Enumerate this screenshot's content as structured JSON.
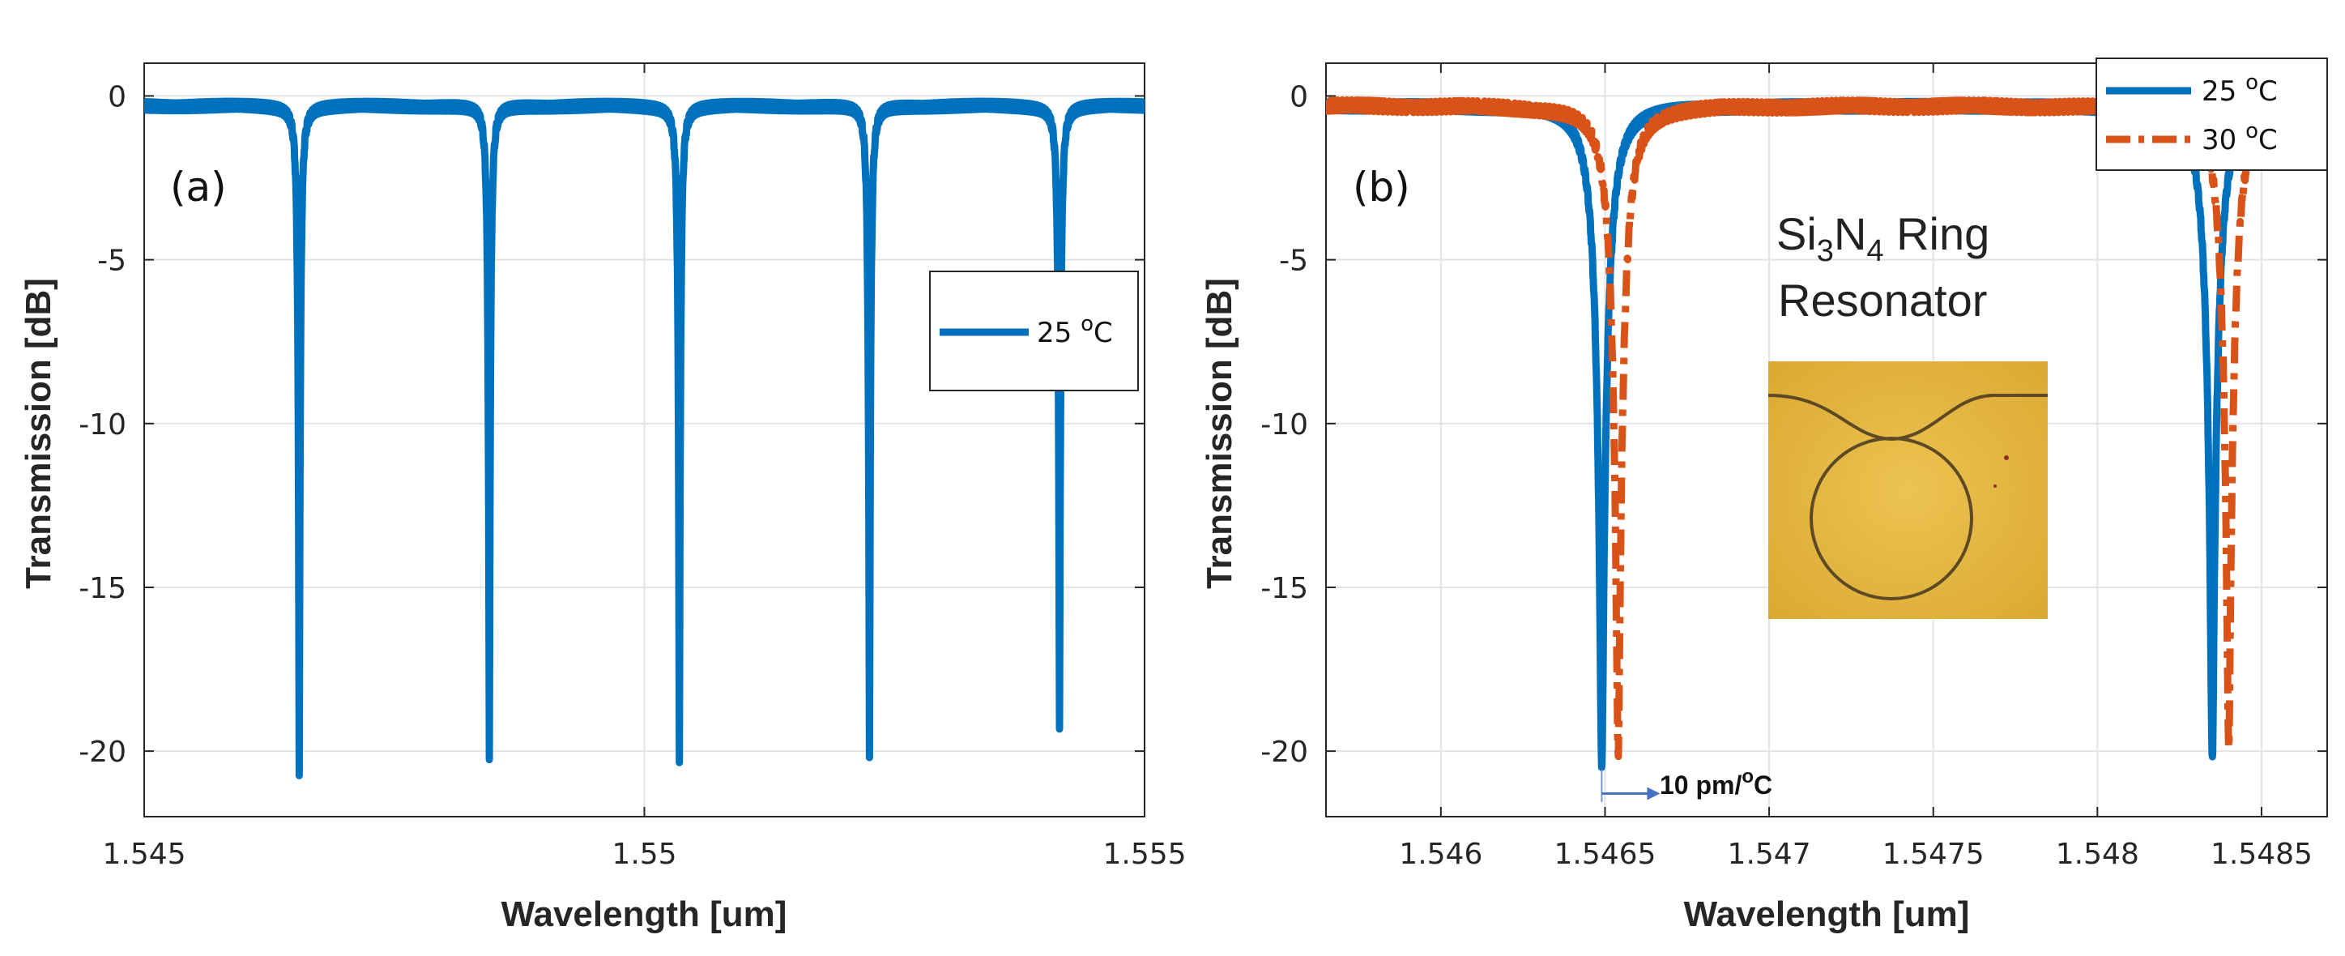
{
  "chart_data": [
    {
      "id": "a",
      "type": "line",
      "panel_label": "(a)",
      "xlabel": "Wavelength [um]",
      "ylabel": "Transmission [dB]",
      "xlim": [
        1.545,
        1.555
      ],
      "ylim": [
        -22,
        1
      ],
      "xticks": [
        1.545,
        1.55,
        1.555
      ],
      "xtick_labels": [
        "1.545",
        "1.55",
        "1.555"
      ],
      "yticks": [
        0,
        -5,
        -10,
        -15,
        -20
      ],
      "ytick_labels": [
        "0",
        "-5",
        "-10",
        "-15",
        "-20"
      ],
      "grid": true,
      "legend_position": "right-middle",
      "series": [
        {
          "name": "25 ºC",
          "legend_label": "25 ",
          "legend_unit": "C",
          "style": "solid",
          "color": "#0072BD",
          "baseline_db": -0.3,
          "fwhm_um": 6e-05,
          "resonances": [
            {
              "center": 1.54655,
              "depth": -20.3
            },
            {
              "center": 1.54845,
              "depth": -20.0
            },
            {
              "center": 1.55035,
              "depth": -19.9
            },
            {
              "center": 1.55225,
              "depth": -19.8
            },
            {
              "center": 1.55415,
              "depth": -19.1
            }
          ]
        }
      ]
    },
    {
      "id": "b",
      "type": "line",
      "panel_label": "(b)",
      "xlabel": "Wavelength [um]",
      "ylabel": "Transmission [dB]",
      "xlim": [
        1.54565,
        1.5487
      ],
      "ylim": [
        -22,
        1
      ],
      "xticks": [
        1.546,
        1.5465,
        1.547,
        1.5475,
        1.548,
        1.5485
      ],
      "xtick_labels": [
        "1.546",
        "1.5465",
        "1.547",
        "1.5475",
        "1.548",
        "1.5485"
      ],
      "yticks": [
        0,
        -5,
        -10,
        -15,
        -20
      ],
      "ytick_labels": [
        "0",
        "-5",
        "-10",
        "-15",
        "-20"
      ],
      "grid": true,
      "legend_position": "top-right",
      "series": [
        {
          "name": "25 ºC",
          "legend_label": "25 ",
          "legend_unit": "C",
          "style": "solid",
          "color": "#0072BD",
          "baseline_db": -0.3,
          "fwhm_um": 8e-05,
          "resonances": [
            {
              "center": 1.54649,
              "depth": -20.3
            },
            {
              "center": 1.54835,
              "depth": -20.0
            }
          ]
        },
        {
          "name": "30 ºC",
          "legend_label": "30 ",
          "legend_unit": "C",
          "style": "dashdot",
          "color": "#D95319",
          "baseline_db": -0.3,
          "fwhm_um": 8e-05,
          "resonances": [
            {
              "center": 1.54654,
              "depth": -19.8
            },
            {
              "center": 1.5484,
              "depth": -19.5
            }
          ]
        }
      ],
      "annotations": {
        "shift_text": "10 pm/",
        "shift_unit": "C",
        "shift_from_x": 1.54649,
        "shift_arrow_y": -20.8,
        "inset_title_line1_pre": "Si",
        "inset_title_sub1": "3",
        "inset_title_mid": "N",
        "inset_title_sub2": "4",
        "inset_title_post": " Ring",
        "inset_title_line2": "Resonator",
        "inset_image_label": "micrograph of Si3N4 ring resonator"
      }
    }
  ]
}
